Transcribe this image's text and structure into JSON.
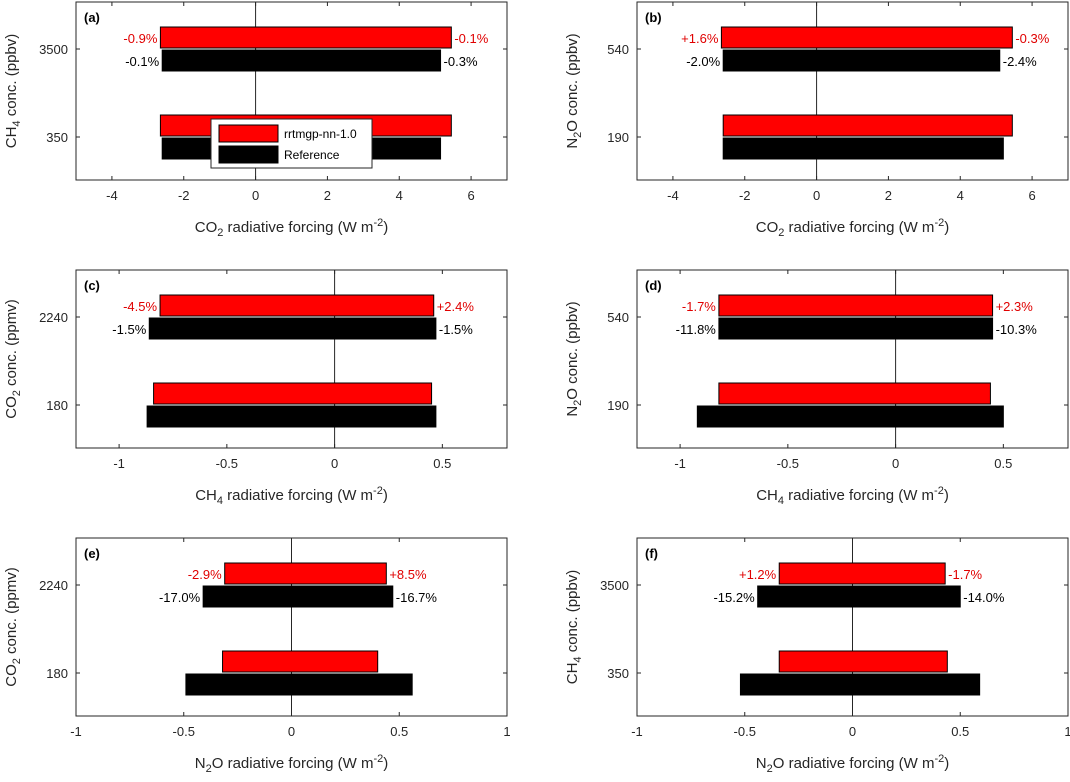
{
  "colors": {
    "nn": "#ff0000",
    "reference": "#000000",
    "nn_label": "#e00000",
    "ref_label": "#000000"
  },
  "legend": {
    "nn": "rrtmgp-nn-1.0",
    "reference": "Reference"
  },
  "chart_data": [
    {
      "type": "bar",
      "orientation": "horizontal",
      "panel": "(a)",
      "xlim": [
        -5,
        7
      ],
      "xticks": [
        -4,
        -2,
        0,
        2,
        4,
        6
      ],
      "xlabel": {
        "pre": "CO",
        "sub": "2",
        "mid": " radiative forcing (W m",
        "sup": "-2",
        "post": ")"
      },
      "ylabel": {
        "pre": "CH",
        "sub": "4",
        "post": " conc. (ppbv)"
      },
      "categories": [
        "3500",
        "350"
      ],
      "series": [
        {
          "name": "rrtmgp-nn-1.0",
          "low": [
            -2.65,
            -2.65
          ],
          "high": [
            5.45,
            5.45
          ]
        },
        {
          "name": "Reference",
          "low": [
            -2.6,
            -2.6
          ],
          "high": [
            5.15,
            5.15
          ]
        }
      ],
      "annotations": {
        "nn_low": "-0.9%",
        "nn_high": "-0.1%",
        "ref_low": "-0.1%",
        "ref_high": "-0.3%"
      },
      "show_legend": true
    },
    {
      "type": "bar",
      "orientation": "horizontal",
      "panel": "(b)",
      "xlim": [
        -5,
        7
      ],
      "xticks": [
        -4,
        -2,
        0,
        2,
        4,
        6
      ],
      "xlabel": {
        "pre": "CO",
        "sub": "2",
        "mid": " radiative forcing (W m",
        "sup": "-2",
        "post": ")"
      },
      "ylabel": {
        "pre": "N",
        "sub": "2",
        "post": "O conc. (ppbv)"
      },
      "categories": [
        "540",
        "190"
      ],
      "series": [
        {
          "name": "rrtmgp-nn-1.0",
          "low": [
            -2.65,
            -2.6
          ],
          "high": [
            5.45,
            5.45
          ]
        },
        {
          "name": "Reference",
          "low": [
            -2.6,
            -2.6
          ],
          "high": [
            5.1,
            5.2
          ]
        }
      ],
      "annotations": {
        "nn_low": "+1.6%",
        "nn_high": "-0.3%",
        "ref_low": "-2.0%",
        "ref_high": "-2.4%"
      },
      "show_legend": false
    },
    {
      "type": "bar",
      "orientation": "horizontal",
      "panel": "(c)",
      "xlim": [
        -1.2,
        0.8
      ],
      "xticks": [
        -1,
        -0.5,
        0,
        0.5
      ],
      "xlabel": {
        "pre": "CH",
        "sub": "4",
        "mid": " radiative forcing (W m",
        "sup": "-2",
        "post": ")"
      },
      "ylabel": {
        "pre": "CO",
        "sub": "2",
        "post": " conc. (ppmv)"
      },
      "categories": [
        "2240",
        "180"
      ],
      "series": [
        {
          "name": "rrtmgp-nn-1.0",
          "low": [
            -0.81,
            -0.84
          ],
          "high": [
            0.46,
            0.45
          ]
        },
        {
          "name": "Reference",
          "low": [
            -0.86,
            -0.87
          ],
          "high": [
            0.47,
            0.47
          ]
        }
      ],
      "annotations": {
        "nn_low": "-4.5%",
        "nn_high": "+2.4%",
        "ref_low": "-1.5%",
        "ref_high": "-1.5%"
      },
      "show_legend": false
    },
    {
      "type": "bar",
      "orientation": "horizontal",
      "panel": "(d)",
      "xlim": [
        -1.2,
        0.8
      ],
      "xticks": [
        -1,
        -0.5,
        0,
        0.5
      ],
      "xlabel": {
        "pre": "CH",
        "sub": "4",
        "mid": " radiative forcing (W m",
        "sup": "-2",
        "post": ")"
      },
      "ylabel": {
        "pre": "N",
        "sub": "2",
        "post": "O conc. (ppbv)"
      },
      "categories": [
        "540",
        "190"
      ],
      "series": [
        {
          "name": "rrtmgp-nn-1.0",
          "low": [
            -0.82,
            -0.82
          ],
          "high": [
            0.45,
            0.44
          ]
        },
        {
          "name": "Reference",
          "low": [
            -0.82,
            -0.92
          ],
          "high": [
            0.45,
            0.5
          ]
        }
      ],
      "annotations": {
        "nn_low": "-1.7%",
        "nn_high": "+2.3%",
        "ref_low": "-11.8%",
        "ref_high": "-10.3%"
      },
      "show_legend": false
    },
    {
      "type": "bar",
      "orientation": "horizontal",
      "panel": "(e)",
      "xlim": [
        -1,
        1
      ],
      "xticks": [
        -1,
        -0.5,
        0,
        0.5,
        1
      ],
      "xlabel": {
        "pre": "N",
        "sub": "2",
        "mid": "O radiative forcing (W m",
        "sup": "-2",
        "post": ")"
      },
      "ylabel": {
        "pre": "CO",
        "sub": "2",
        "post": " conc. (ppmv)"
      },
      "categories": [
        "2240",
        "180"
      ],
      "series": [
        {
          "name": "rrtmgp-nn-1.0",
          "low": [
            -0.31,
            -0.32
          ],
          "high": [
            0.44,
            0.4
          ]
        },
        {
          "name": "Reference",
          "low": [
            -0.41,
            -0.49
          ],
          "high": [
            0.47,
            0.56
          ]
        }
      ],
      "annotations": {
        "nn_low": "-2.9%",
        "nn_high": "+8.5%",
        "ref_low": "-17.0%",
        "ref_high": "-16.7%"
      },
      "show_legend": false
    },
    {
      "type": "bar",
      "orientation": "horizontal",
      "panel": "(f)",
      "xlim": [
        -1,
        1
      ],
      "xticks": [
        -1,
        -0.5,
        0,
        0.5,
        1
      ],
      "xlabel": {
        "pre": "N",
        "sub": "2",
        "mid": "O radiative forcing (W m",
        "sup": "-2",
        "post": ")"
      },
      "ylabel": {
        "pre": "CH",
        "sub": "4",
        "post": " conc. (ppbv)"
      },
      "categories": [
        "3500",
        "350"
      ],
      "series": [
        {
          "name": "rrtmgp-nn-1.0",
          "low": [
            -0.34,
            -0.34
          ],
          "high": [
            0.43,
            0.44
          ]
        },
        {
          "name": "Reference",
          "low": [
            -0.44,
            -0.52
          ],
          "high": [
            0.5,
            0.59
          ]
        }
      ],
      "annotations": {
        "nn_low": "+1.2%",
        "nn_high": "-1.7%",
        "ref_low": "-15.2%",
        "ref_high": "-14.0%"
      },
      "show_legend": false
    }
  ]
}
